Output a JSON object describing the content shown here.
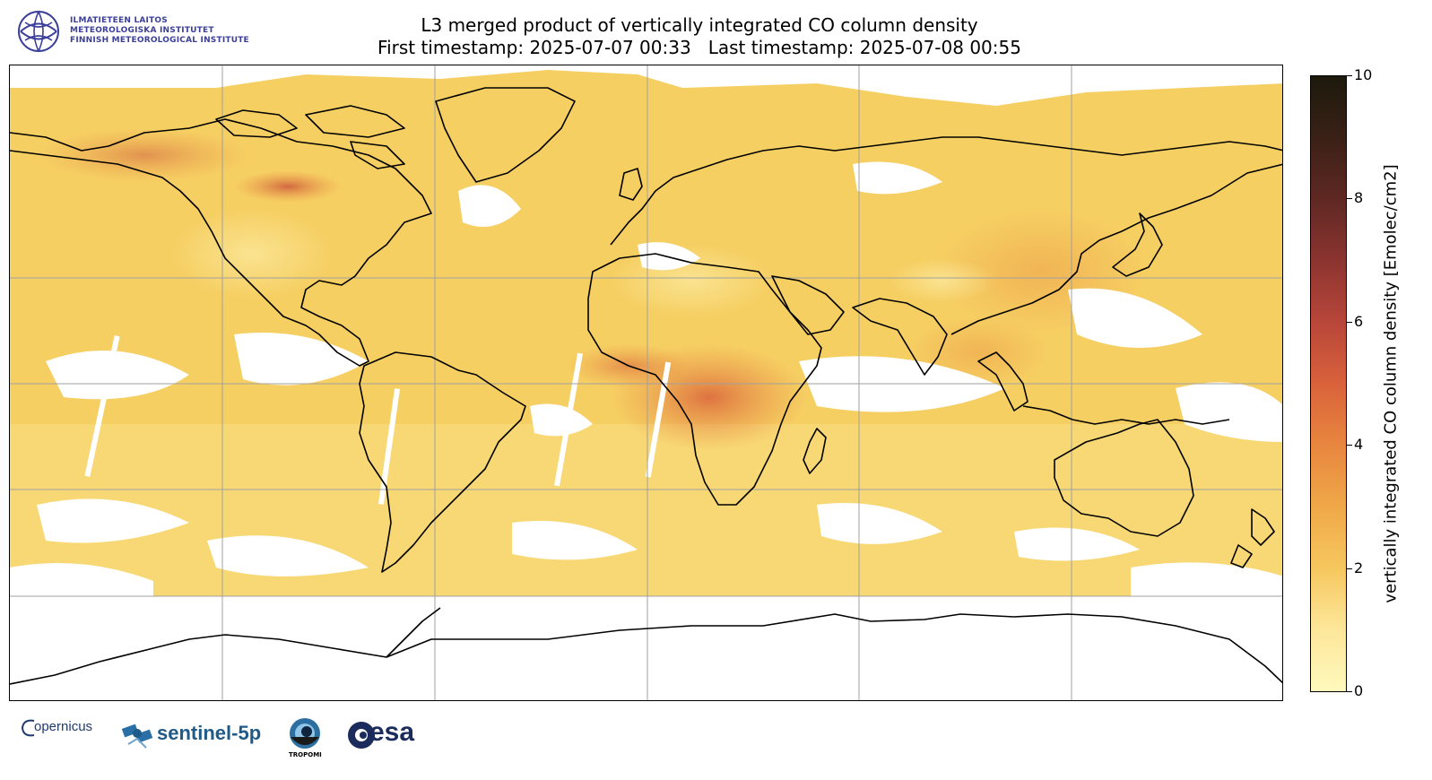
{
  "header": {
    "institute_lines": [
      "ILMATIETEEN LAITOS",
      "METEOROLOGISKA INSTITUTET",
      "FINNISH METEOROLOGICAL INSTITUTE"
    ],
    "title_line1": "L3 merged product of vertically integrated CO column density",
    "title_line2": "First timestamp: 2025-07-07 00:33   Last timestamp: 2025-07-08 00:55"
  },
  "colorbar": {
    "label": "vertically integrated CO column density [Emolec/cm2]",
    "min": 0,
    "max": 10,
    "ticks": [
      "0",
      "2",
      "4",
      "6",
      "8",
      "10"
    ],
    "colormap": [
      "#fff9bd",
      "#f6c75e",
      "#e8863f",
      "#d9623b",
      "#8c3430",
      "#1c1a0c"
    ]
  },
  "map": {
    "projection": "equirectangular",
    "lon_range": [
      -180,
      180
    ],
    "lat_range": [
      -90,
      90
    ],
    "gridlines": true,
    "base_color": "#f6cf63",
    "no_data_color": "#ffffff",
    "coastline_color": "#000000"
  },
  "footer": {
    "logos": [
      "copernicus",
      "sentinel-5p",
      "tropomi",
      "esa"
    ],
    "copernicus_text": "opernicus",
    "sentinel_text": "sentinel-5p",
    "tropomi_text": "TROPOMI",
    "esa_text": "esa"
  }
}
